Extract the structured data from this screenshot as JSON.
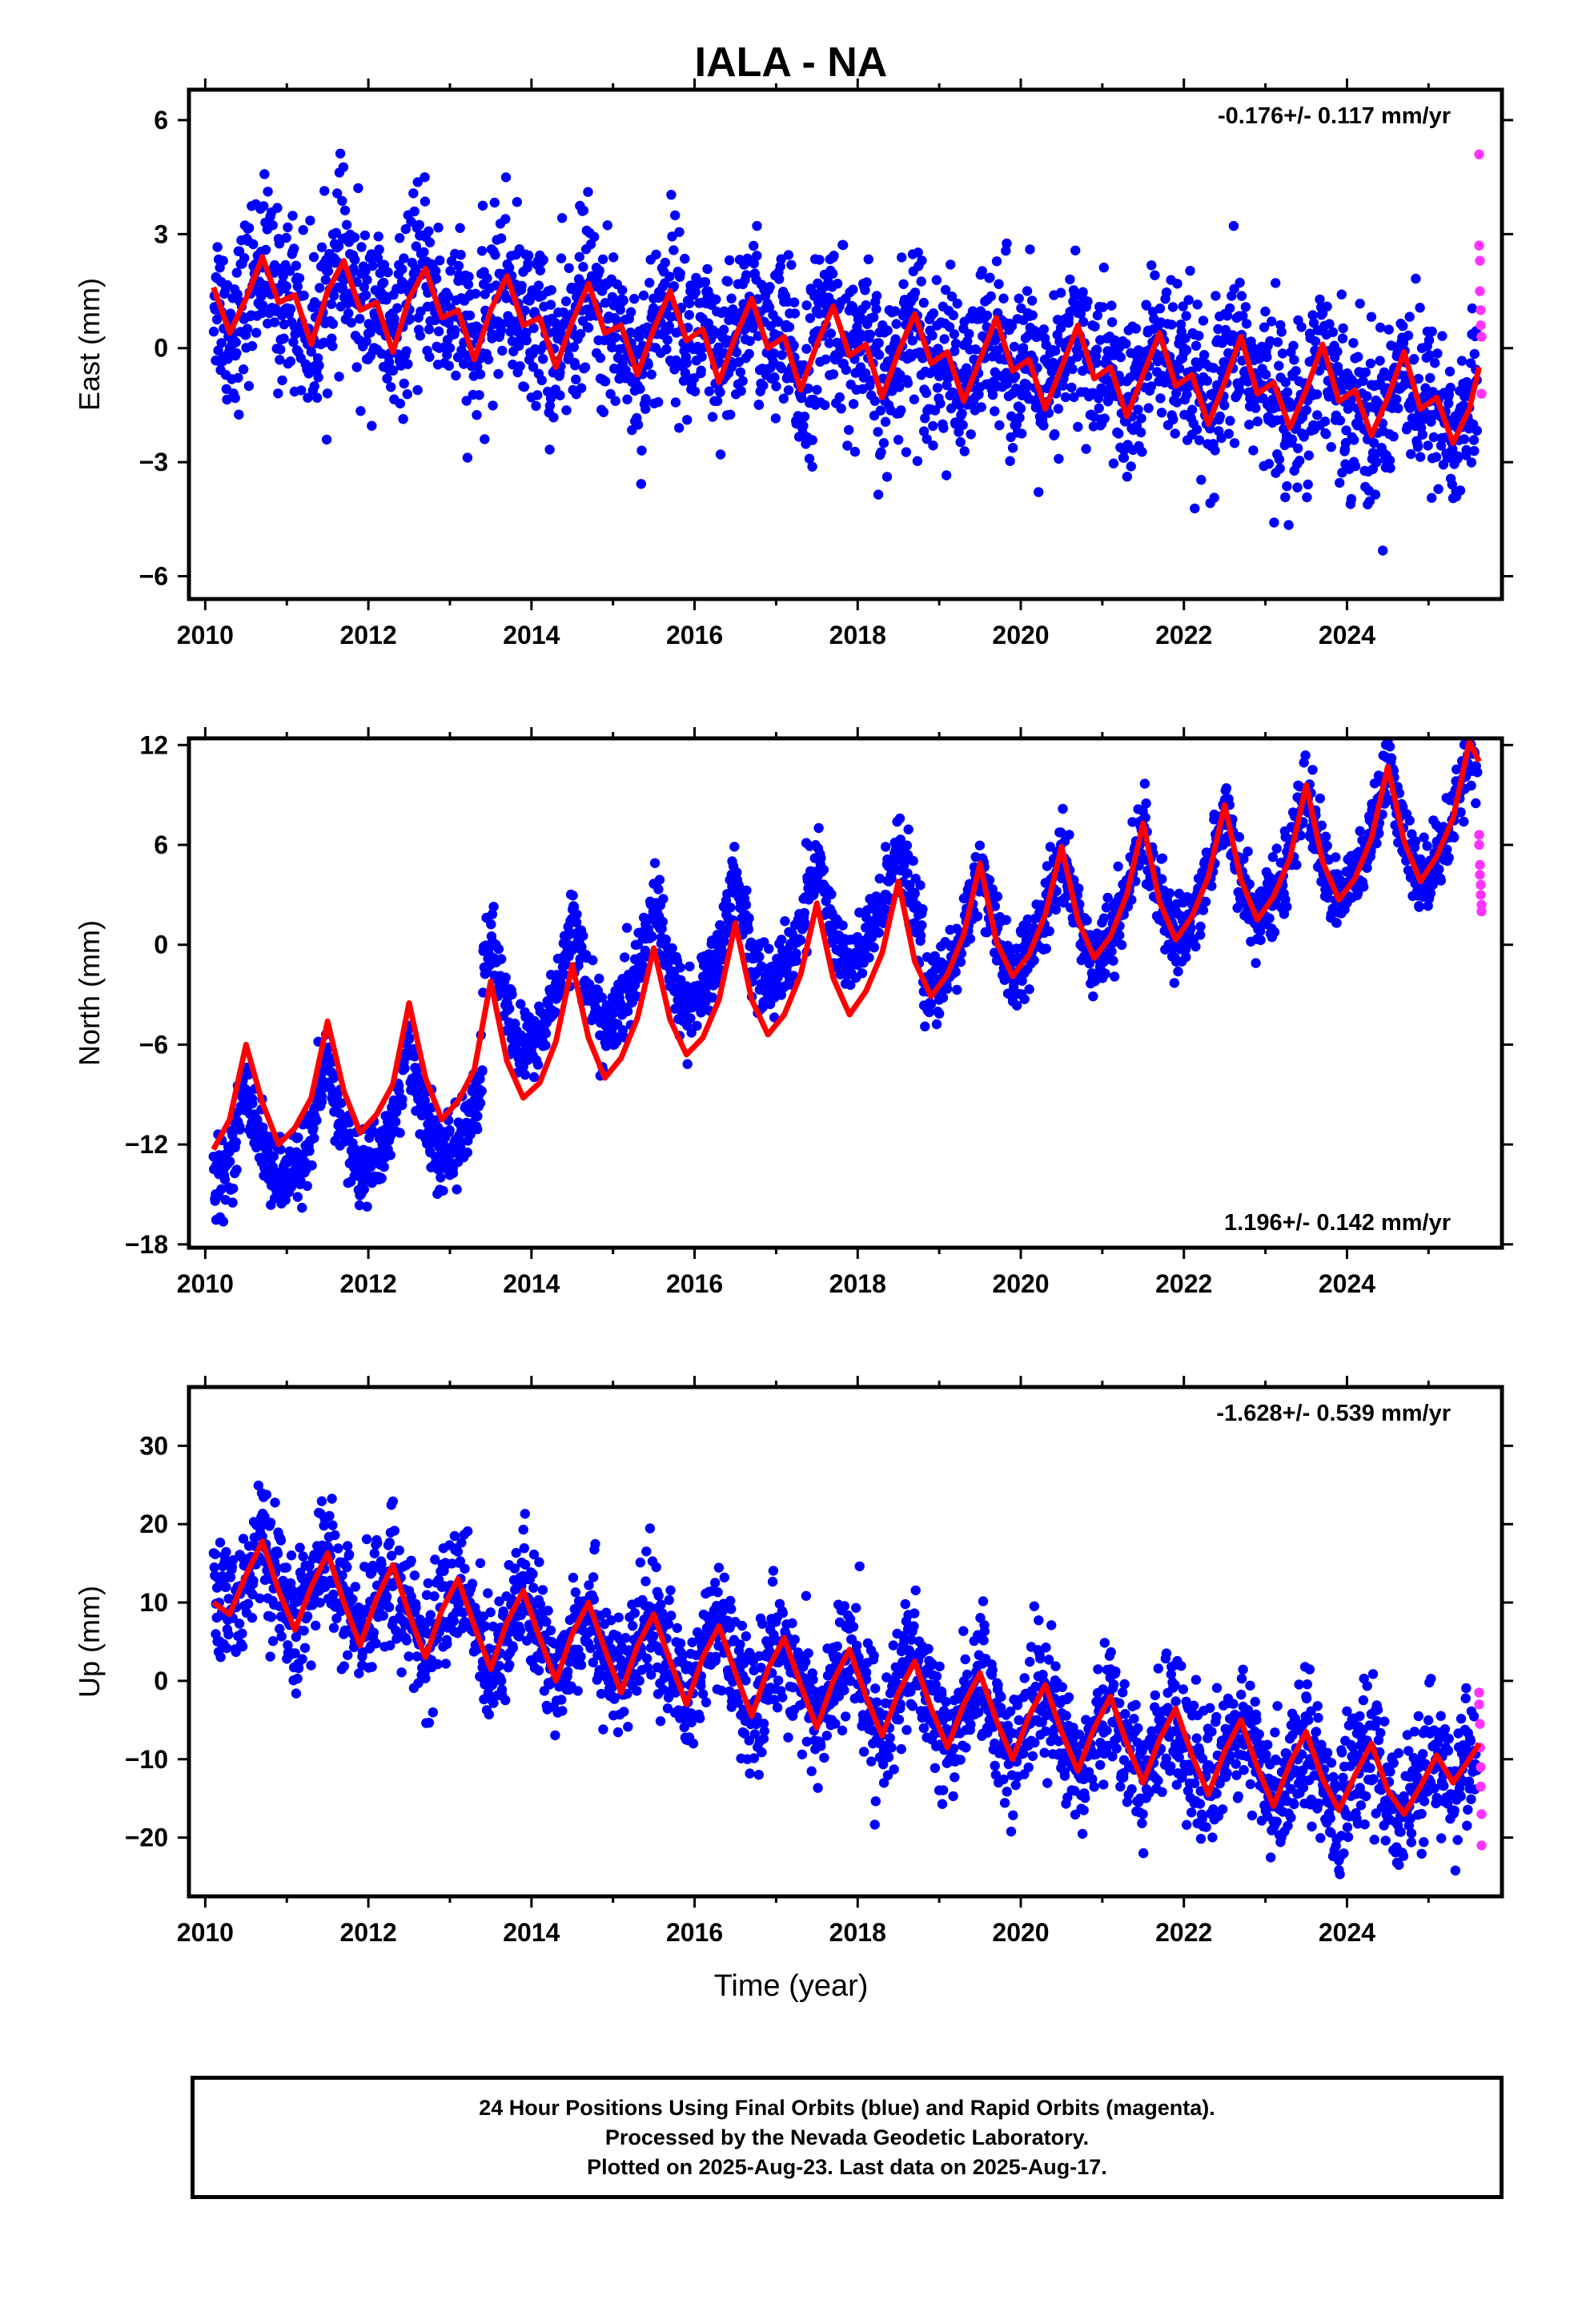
{
  "title": "IALA - NA",
  "xlabel": "Time (year)",
  "x_ticks": [
    "2010",
    "2012",
    "2014",
    "2016",
    "2018",
    "2020",
    "2022",
    "2024"
  ],
  "colors": {
    "final_orbits": "#0000ff",
    "rapid_orbits": "#ff33ff",
    "model": "#ff0000",
    "axes": "#000000"
  },
  "footer": {
    "line1": "24 Hour Positions Using Final Orbits (blue) and Rapid Orbits (magenta).",
    "line2": "Processed by the Nevada Geodetic Laboratory.",
    "line3": "Plotted on 2025-Aug-23. Last data on 2025-Aug-17."
  },
  "chart_data": [
    {
      "type": "scatter",
      "component": "east",
      "ylabel": "East (mm)",
      "annotation": "-0.176+/- 0.117 mm/yr",
      "annotation_position": "top-right",
      "xlim": [
        2009.8,
        2025.9
      ],
      "ylim": [
        -6.6,
        6.8
      ],
      "y_ticks": [
        "6",
        "3",
        "0",
        "−3",
        "−6"
      ],
      "y_tick_values": [
        6,
        3,
        0,
        -3,
        -6
      ],
      "model_curve": {
        "name": "fit",
        "x": [
          2010.1,
          2010.3,
          2010.5,
          2010.7,
          2010.9,
          2011.1,
          2011.3,
          2011.5,
          2011.7,
          2011.9,
          2012.1,
          2012.3,
          2012.5,
          2012.7,
          2012.9,
          2013.1,
          2013.3,
          2013.5,
          2013.7,
          2013.9,
          2014.1,
          2014.3,
          2014.5,
          2014.7,
          2014.9,
          2015.1,
          2015.3,
          2015.5,
          2015.7,
          2015.9,
          2016.1,
          2016.3,
          2016.5,
          2016.7,
          2016.9,
          2017.1,
          2017.3,
          2017.5,
          2017.7,
          2017.9,
          2018.1,
          2018.3,
          2018.5,
          2018.7,
          2018.9,
          2019.1,
          2019.3,
          2019.5,
          2019.7,
          2019.9,
          2020.1,
          2020.3,
          2020.5,
          2020.7,
          2020.9,
          2021.1,
          2021.3,
          2021.5,
          2021.7,
          2021.9,
          2022.1,
          2022.3,
          2022.5,
          2022.7,
          2022.9,
          2023.1,
          2023.3,
          2023.5,
          2023.7,
          2023.9,
          2024.1,
          2024.3,
          2024.5,
          2024.7,
          2024.9,
          2025.1,
          2025.3,
          2025.5,
          2025.62
        ],
        "y": [
          1.6,
          0.4,
          1.3,
          2.4,
          1.2,
          1.4,
          0.1,
          1.5,
          2.3,
          1.0,
          1.2,
          -0.1,
          1.3,
          2.1,
          0.8,
          1.0,
          -0.3,
          1.0,
          1.9,
          0.6,
          0.8,
          -0.5,
          0.7,
          1.7,
          0.4,
          0.6,
          -0.7,
          0.5,
          1.5,
          0.2,
          0.5,
          -0.9,
          0.3,
          1.3,
          0.0,
          0.3,
          -1.1,
          0.1,
          1.1,
          -0.2,
          0.1,
          -1.3,
          -0.1,
          0.9,
          -0.4,
          -0.1,
          -1.4,
          -0.3,
          0.8,
          -0.6,
          -0.3,
          -1.6,
          -0.5,
          0.6,
          -0.8,
          -0.5,
          -1.8,
          -0.7,
          0.4,
          -1.0,
          -0.7,
          -2.0,
          -0.9,
          0.3,
          -1.2,
          -0.9,
          -2.1,
          -1.1,
          0.1,
          -1.4,
          -1.1,
          -2.3,
          -1.3,
          -0.1,
          -1.6,
          -1.3,
          -2.5,
          -1.6,
          -0.5
        ]
      },
      "final_orbits": {
        "x_range": [
          2010.1,
          2025.6
        ],
        "trend": [
          2.2,
          -1.9
        ],
        "amplitude": 1.2,
        "scatter": 1.1
      },
      "rapid_orbits": {
        "x": [
          2025.62,
          2025.62,
          2025.63,
          2025.63,
          2025.64,
          2025.64,
          2025.65,
          2025.65
        ],
        "y": [
          5.1,
          2.7,
          2.3,
          1.5,
          1.0,
          0.6,
          0.3,
          -1.2
        ]
      }
    },
    {
      "type": "scatter",
      "component": "north",
      "ylabel": "North (mm)",
      "annotation": "1.196+/- 0.142 mm/yr",
      "annotation_position": "bottom-right",
      "xlim": [
        2009.8,
        2025.9
      ],
      "ylim": [
        -18.2,
        12.4
      ],
      "y_ticks": [
        "12",
        "6",
        "0",
        "−6",
        "−12",
        "−18"
      ],
      "y_tick_values": [
        12,
        6,
        0,
        -6,
        -12,
        -18
      ],
      "model_curve": {
        "name": "fit",
        "x": [
          2010.1,
          2010.3,
          2010.5,
          2010.7,
          2010.9,
          2011.1,
          2011.3,
          2011.5,
          2011.7,
          2011.9,
          2012.1,
          2012.3,
          2012.5,
          2012.7,
          2012.9,
          2013.1,
          2013.3,
          2013.5,
          2013.7,
          2013.9,
          2014.1,
          2014.3,
          2014.5,
          2014.7,
          2014.9,
          2015.1,
          2015.3,
          2015.5,
          2015.7,
          2015.9,
          2016.1,
          2016.3,
          2016.5,
          2016.7,
          2016.9,
          2017.1,
          2017.3,
          2017.5,
          2017.7,
          2017.9,
          2018.1,
          2018.3,
          2018.5,
          2018.7,
          2018.9,
          2019.1,
          2019.3,
          2019.5,
          2019.7,
          2019.9,
          2020.1,
          2020.3,
          2020.5,
          2020.7,
          2020.9,
          2021.1,
          2021.3,
          2021.5,
          2021.7,
          2021.9,
          2022.1,
          2022.3,
          2022.5,
          2022.7,
          2022.9,
          2023.1,
          2023.3,
          2023.5,
          2023.7,
          2023.9,
          2024.1,
          2024.3,
          2024.5,
          2024.7,
          2024.9,
          2025.1,
          2025.3,
          2025.5,
          2025.62
        ],
        "y": [
          -12.3,
          -10.5,
          -6.0,
          -9.5,
          -12.0,
          -11.0,
          -9.2,
          -4.6,
          -8.8,
          -11.3,
          -10.2,
          -8.4,
          -3.5,
          -8.0,
          -10.5,
          -9.4,
          -7.5,
          -2.2,
          -7.0,
          -9.2,
          -8.3,
          -5.8,
          -1.2,
          -5.6,
          -8.0,
          -6.8,
          -4.4,
          -0.2,
          -4.5,
          -6.6,
          -5.6,
          -3.3,
          1.3,
          -3.3,
          -5.4,
          -4.2,
          -1.8,
          2.5,
          -2.0,
          -4.2,
          -2.8,
          -0.5,
          3.8,
          -1.0,
          -3.1,
          -1.8,
          0.6,
          4.9,
          0.2,
          -1.9,
          -0.6,
          1.8,
          5.9,
          1.5,
          -0.8,
          0.5,
          3.0,
          7.3,
          2.6,
          0.3,
          1.7,
          4.1,
          8.4,
          3.9,
          1.5,
          2.9,
          5.2,
          9.6,
          5.0,
          2.7,
          4.0,
          6.4,
          10.7,
          6.2,
          3.8,
          5.3,
          7.6,
          12.2,
          11.0
        ]
      },
      "final_orbits": {
        "x_range": [
          2010.1,
          2025.6
        ],
        "trend": [
          -15.0,
          7.0
        ],
        "amplitude": 3.2,
        "scatter": 1.1
      },
      "rapid_orbits": {
        "x": [
          2025.62,
          2025.62,
          2025.63,
          2025.63,
          2025.64,
          2025.64,
          2025.65,
          2025.65
        ],
        "y": [
          6.6,
          6.0,
          4.8,
          4.2,
          3.6,
          3.0,
          2.4,
          2.0
        ]
      }
    },
    {
      "type": "scatter",
      "component": "up",
      "ylabel": "Up (mm)",
      "annotation": "-1.628+/- 0.539 mm/yr",
      "annotation_position": "top-right",
      "xlim": [
        2009.8,
        2025.9
      ],
      "ylim": [
        -27.5,
        37.5
      ],
      "y_ticks": [
        "30",
        "20",
        "10",
        "0",
        "−10",
        "−20"
      ],
      "y_tick_values": [
        30,
        20,
        10,
        0,
        -10,
        -20
      ],
      "model_curve": {
        "name": "fit",
        "x": [
          2010.1,
          2010.3,
          2010.5,
          2010.7,
          2010.9,
          2011.1,
          2011.3,
          2011.5,
          2011.7,
          2011.9,
          2012.1,
          2012.3,
          2012.5,
          2012.7,
          2012.9,
          2013.1,
          2013.3,
          2013.5,
          2013.7,
          2013.9,
          2014.1,
          2014.3,
          2014.5,
          2014.7,
          2014.9,
          2015.1,
          2015.3,
          2015.5,
          2015.7,
          2015.9,
          2016.1,
          2016.3,
          2016.5,
          2016.7,
          2016.9,
          2017.1,
          2017.3,
          2017.5,
          2017.7,
          2017.9,
          2018.1,
          2018.3,
          2018.5,
          2018.7,
          2018.9,
          2019.1,
          2019.3,
          2019.5,
          2019.7,
          2019.9,
          2020.1,
          2020.3,
          2020.5,
          2020.7,
          2020.9,
          2021.1,
          2021.3,
          2021.5,
          2021.7,
          2021.9,
          2022.1,
          2022.3,
          2022.5,
          2022.7,
          2022.9,
          2023.1,
          2023.3,
          2023.5,
          2023.7,
          2023.9,
          2024.1,
          2024.3,
          2024.5,
          2024.7,
          2024.9,
          2025.1,
          2025.3,
          2025.5,
          2025.62
        ],
        "y": [
          10.0,
          8.5,
          13.5,
          17.8,
          11.5,
          6.5,
          12.0,
          16.3,
          10.0,
          4.5,
          10.5,
          14.8,
          8.5,
          3.0,
          9.0,
          13.0,
          7.0,
          1.5,
          7.5,
          11.5,
          5.5,
          0.0,
          6.0,
          10.0,
          4.0,
          -1.5,
          4.5,
          8.5,
          2.5,
          -3.0,
          3.0,
          7.0,
          1.0,
          -4.5,
          1.5,
          5.5,
          -0.5,
          -6.0,
          0.0,
          4.0,
          -2.0,
          -7.0,
          -1.5,
          2.5,
          -3.5,
          -8.5,
          -3.0,
          1.0,
          -5.0,
          -10.0,
          -4.5,
          -0.5,
          -6.5,
          -11.5,
          -6.0,
          -2.0,
          -8.0,
          -13.0,
          -7.5,
          -3.5,
          -9.5,
          -14.5,
          -9.0,
          -5.0,
          -11.0,
          -16.0,
          -10.5,
          -6.5,
          -12.5,
          -16.5,
          -12.0,
          -8.0,
          -14.0,
          -17.0,
          -13.5,
          -9.5,
          -13.0,
          -10.0,
          -8.0
        ]
      },
      "final_orbits": {
        "x_range": [
          2010.1,
          2025.6
        ],
        "trend": [
          14.0,
          -12.0
        ],
        "amplitude": 6.5,
        "scatter": 4.0
      },
      "rapid_orbits": {
        "x": [
          2025.62,
          2025.62,
          2025.63,
          2025.63,
          2025.64,
          2025.64,
          2025.65,
          2025.65
        ],
        "y": [
          -1.5,
          -3.0,
          -5.5,
          -8.5,
          -11.0,
          -13.5,
          -17.0,
          -21.0
        ]
      }
    }
  ]
}
